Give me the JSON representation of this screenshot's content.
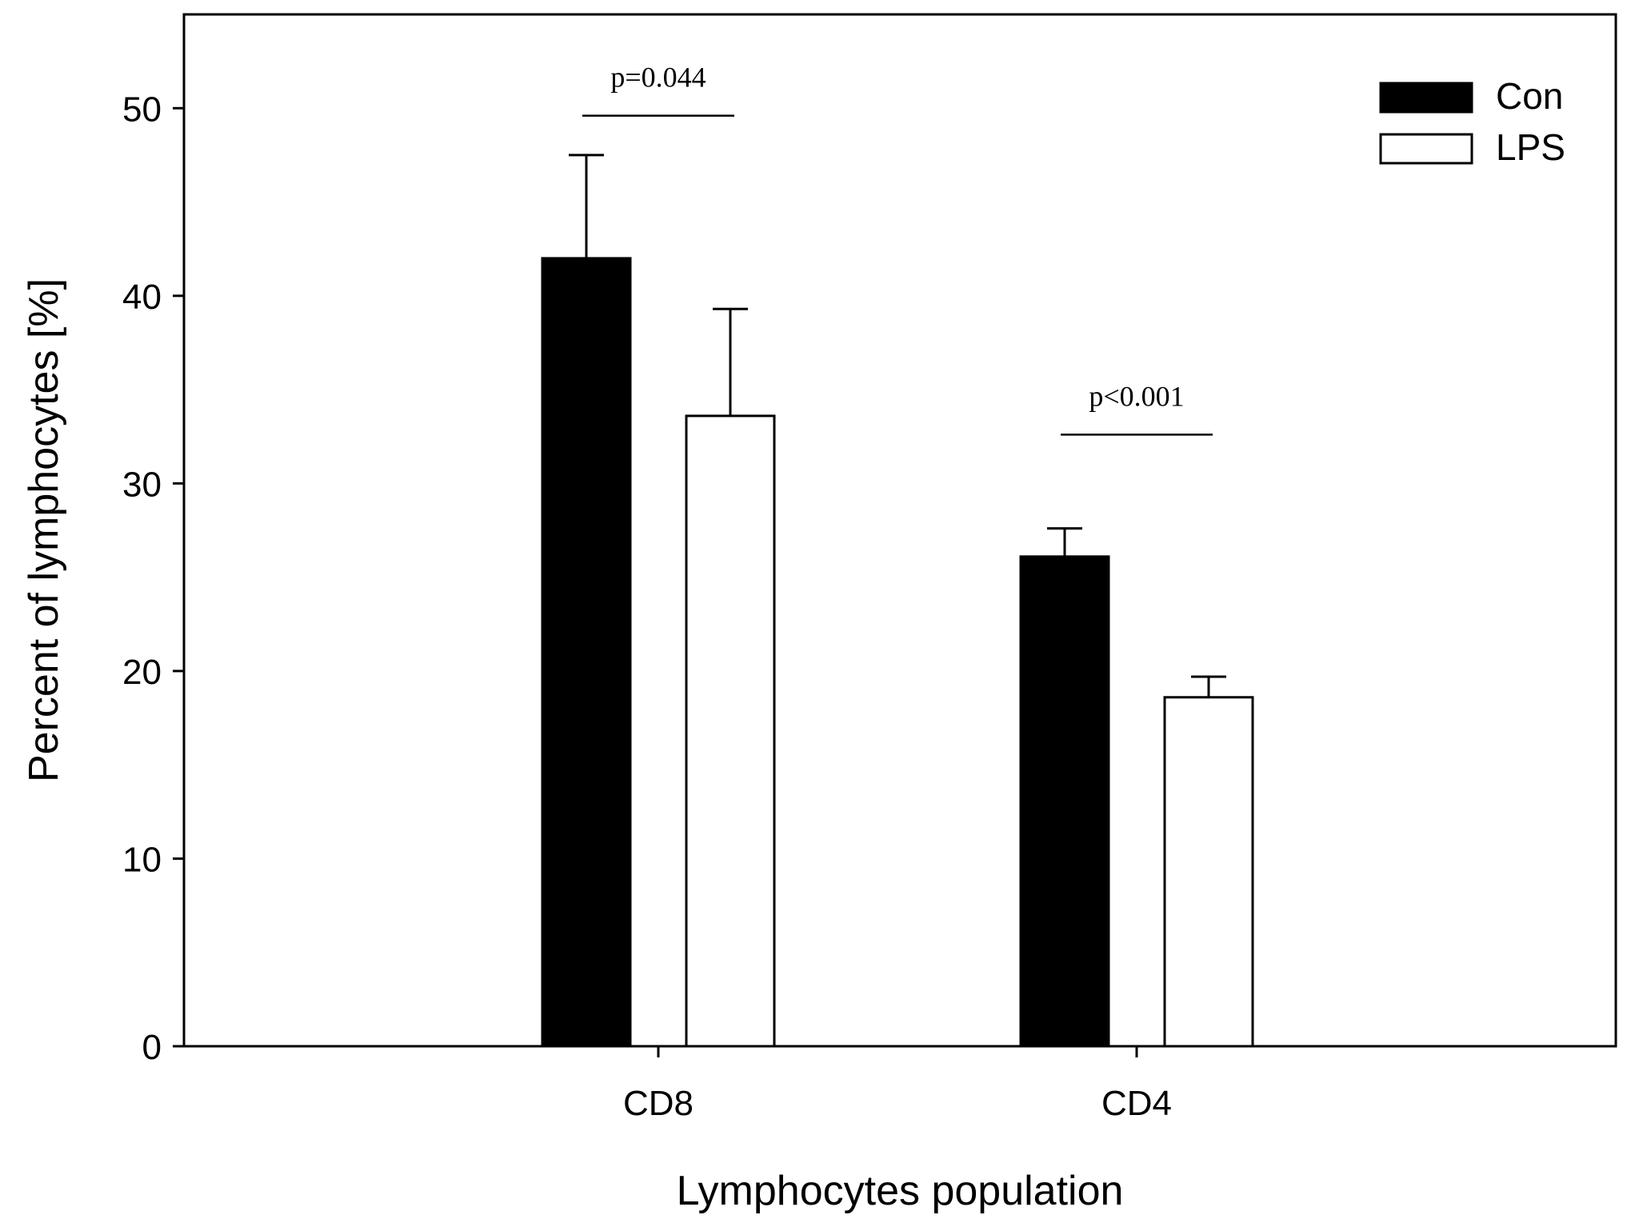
{
  "chart_data": {
    "type": "bar",
    "xlabel": "Lymphocytes population",
    "ylabel": "Percent of lymphocytes [%]",
    "categories": [
      "CD8",
      "CD4"
    ],
    "ylim": [
      0,
      55
    ],
    "yticks": [
      0,
      10,
      20,
      30,
      40,
      50
    ],
    "grid": false,
    "legend_position": "top-right",
    "series": [
      {
        "name": "Con",
        "color": "#000000",
        "values": [
          42.0,
          26.1
        ],
        "errors": [
          5.5,
          1.5
        ]
      },
      {
        "name": "LPS",
        "color": "#ffffff",
        "values": [
          33.6,
          18.6
        ],
        "errors": [
          5.7,
          1.1
        ]
      }
    ],
    "annotations": [
      {
        "category": "CD8",
        "text": "p=0.044",
        "y": 49.6
      },
      {
        "category": "CD4",
        "text": "p<0.001",
        "y": 32.6
      }
    ]
  }
}
